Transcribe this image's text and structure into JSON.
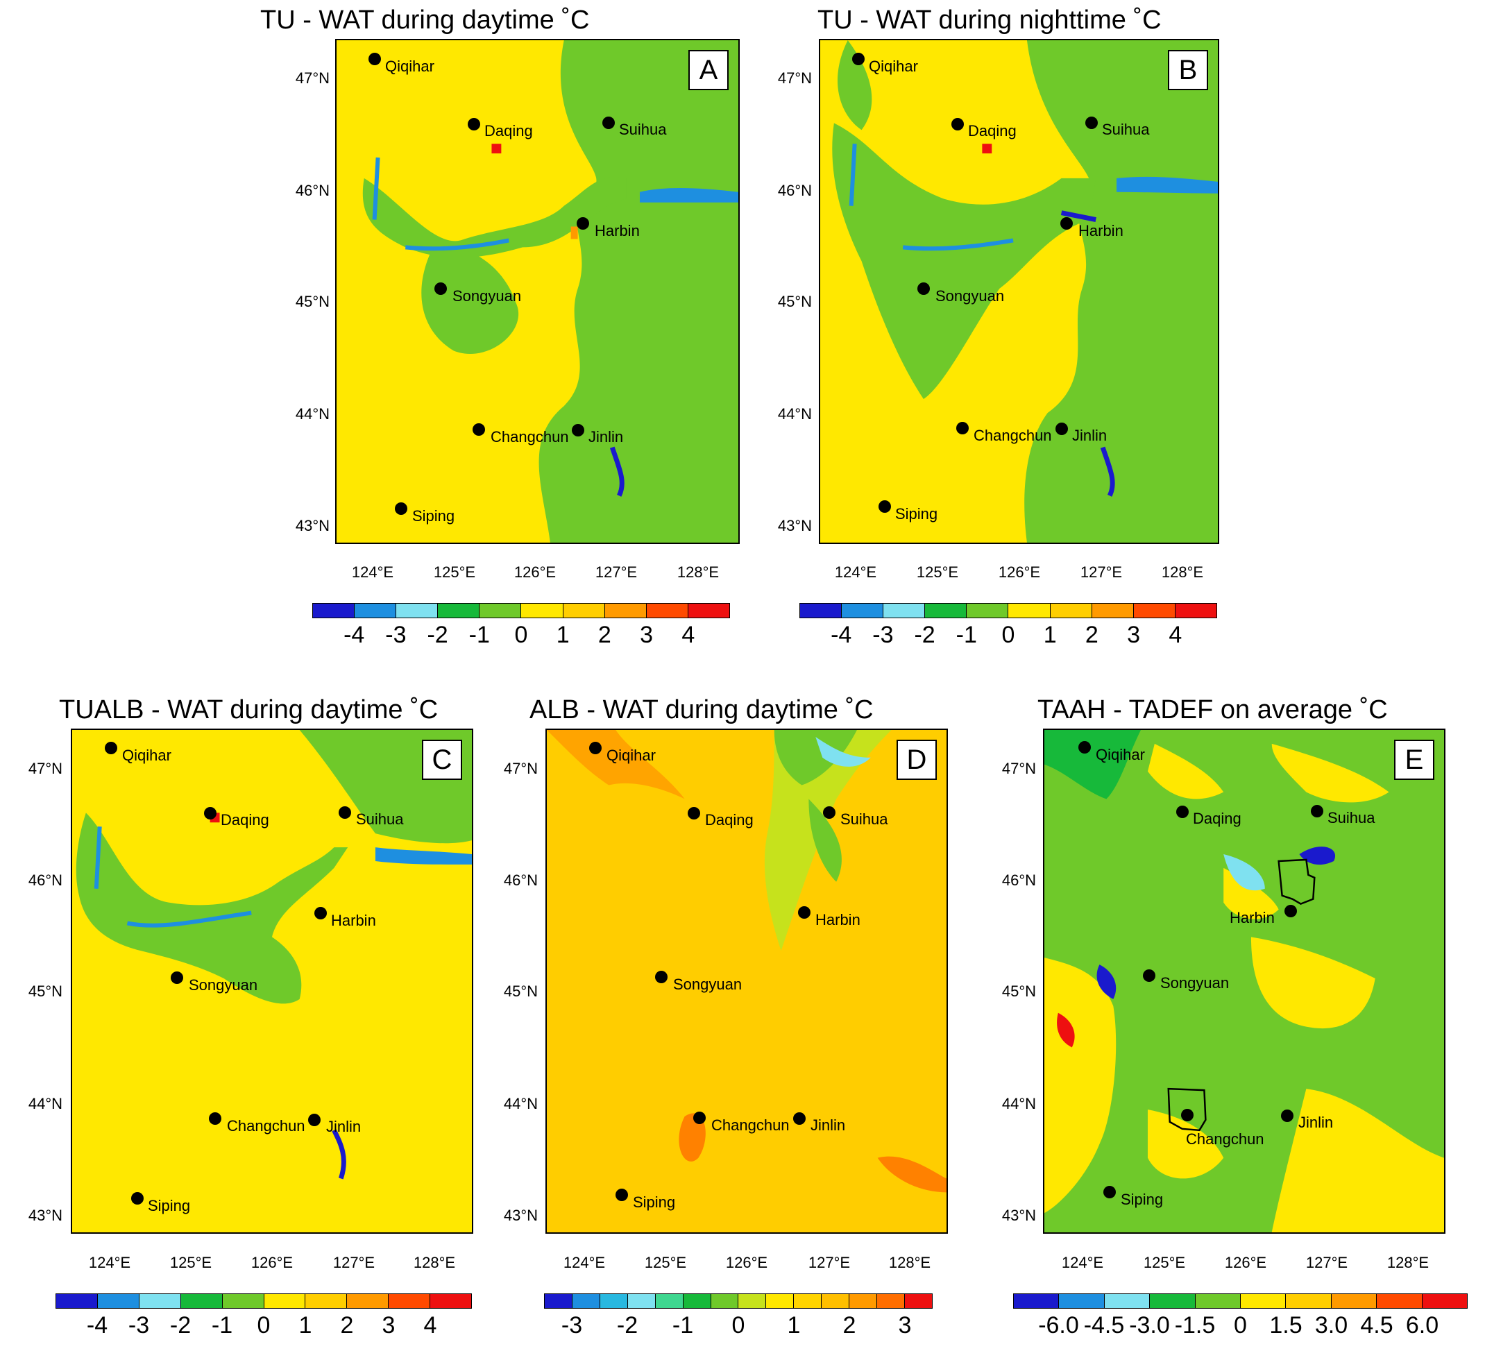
{
  "panels": {
    "A": {
      "title": "TU - WAT during daytime  ˚C",
      "letter": "A",
      "colorbar": {
        "labels": [
          "-4",
          "-3",
          "-2",
          "-1",
          "0",
          "1",
          "2",
          "3",
          "4"
        ],
        "colors": [
          "#1a1acd",
          "#1e8fe0",
          "#7fe1f0",
          "#17b93a",
          "#6fc92a",
          "#ffe800",
          "#ffce00",
          "#ff9a00",
          "#ff4a00",
          "#ee1010"
        ]
      }
    },
    "B": {
      "title": "TU - WAT during nighttime  ˚C",
      "letter": "B",
      "colorbar": {
        "labels": [
          "-4",
          "-3",
          "-2",
          "-1",
          "0",
          "1",
          "2",
          "3",
          "4"
        ],
        "colors": [
          "#1a1acd",
          "#1e8fe0",
          "#7fe1f0",
          "#17b93a",
          "#6fc92a",
          "#ffe800",
          "#ffce00",
          "#ff9a00",
          "#ff4a00",
          "#ee1010"
        ]
      }
    },
    "C": {
      "title": "TUALB - WAT during daytime  ˚C",
      "letter": "C",
      "colorbar": {
        "labels": [
          "-4",
          "-3",
          "-2",
          "-1",
          "0",
          "1",
          "2",
          "3",
          "4"
        ],
        "colors": [
          "#1a1acd",
          "#1e8fe0",
          "#7fe1f0",
          "#17b93a",
          "#6fc92a",
          "#ffe800",
          "#ffce00",
          "#ff9a00",
          "#ff4a00",
          "#ee1010"
        ]
      }
    },
    "D": {
      "title": "ALB - WAT during daytime  ˚C",
      "letter": "D",
      "colorbar": {
        "labels": [
          "-3",
          "-2",
          "-1",
          "0",
          "1",
          "2",
          "3"
        ],
        "colors": [
          "#1a1acd",
          "#1e8fe0",
          "#28b8e0",
          "#7fe1f0",
          "#3fd790",
          "#17b93a",
          "#6fc92a",
          "#c6e21c",
          "#ffe800",
          "#ffd400",
          "#ffbf00",
          "#ff9a00",
          "#ff6e00",
          "#ee1010"
        ]
      }
    },
    "E": {
      "title": "TAAH - TADEF on average  ˚C",
      "letter": "E",
      "colorbar": {
        "labels": [
          "-6.0",
          "-4.5",
          "-3.0",
          "-1.5",
          "0",
          "1.5",
          "3.0",
          "4.5",
          "6.0"
        ],
        "colors": [
          "#1a1acd",
          "#1e8fe0",
          "#7fe1f0",
          "#17b93a",
          "#6fc92a",
          "#ffe800",
          "#ffce00",
          "#ff9a00",
          "#ff4a00",
          "#ee1010"
        ]
      }
    }
  },
  "lat_labels": [
    "47°N",
    "46°N",
    "45°N",
    "44°N",
    "43°N"
  ],
  "lon_labels": [
    "124°E",
    "125°E",
    "126°E",
    "127°E",
    "128°E"
  ],
  "cities": [
    "Qiqihar",
    "Daqing",
    "Suihua",
    "Harbin",
    "Songyuan",
    "Changchun",
    "Jinlin",
    "Siping"
  ]
}
